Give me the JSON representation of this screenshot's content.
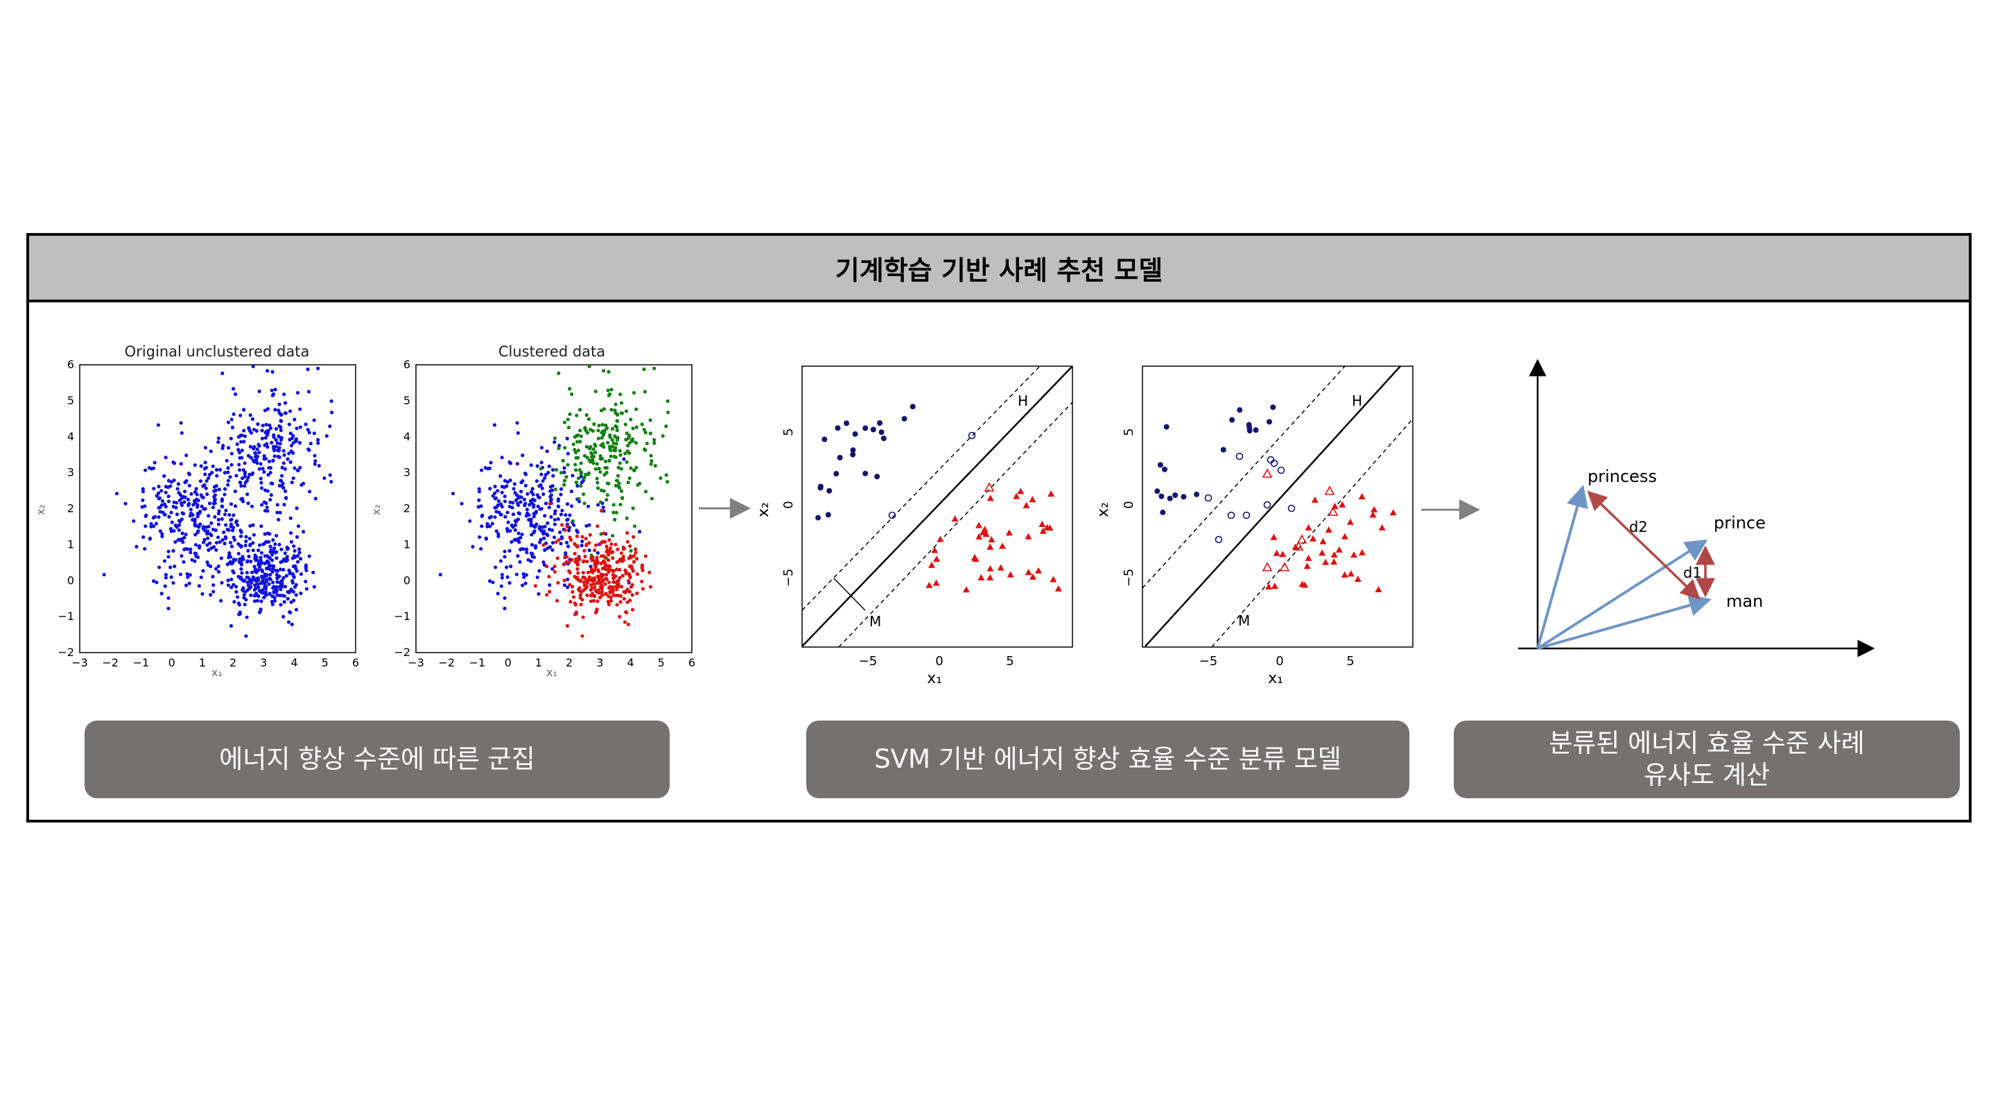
{
  "title": "기계학습 기반 사례 추천 모델",
  "captions": {
    "clustering": "에너지 향상 수준에 따른 군집",
    "svm": "SVM 기반 에너지 향상 효율 수준 분류 모델",
    "similarity_line1": "분류된 에너지 효율 수준 사례",
    "similarity_line2": "유사도 계산"
  },
  "colors": {
    "header_bg": "#bfbfbf",
    "caption_bg": "#767171",
    "blue_points": "#1010e0",
    "green_points": "#108010",
    "red_points": "#e01010",
    "navy_points": "#14146e",
    "vector_blue": "#6e95c4",
    "vector_red": "#b04848"
  },
  "scatter_plots": {
    "original": {
      "title": "Original unclustered data",
      "xlabel": "x₁",
      "ylabel": "x₂",
      "xticks": [
        "−3",
        "−2",
        "−1",
        "0",
        "1",
        "2",
        "3",
        "4",
        "5",
        "6"
      ],
      "yticks": [
        "−2",
        "−1",
        "0",
        "1",
        "2",
        "3",
        "4",
        "5",
        "6"
      ],
      "xlim": [
        -3,
        6
      ],
      "ylim": [
        -2,
        6
      ]
    },
    "clustered": {
      "title": "Clustered data",
      "xlabel": "x₁",
      "ylabel": "x₂",
      "xticks": [
        "−3",
        "−2",
        "−1",
        "0",
        "1",
        "2",
        "3",
        "4",
        "5",
        "6"
      ],
      "yticks": [
        "−2",
        "−1",
        "0",
        "1",
        "2",
        "3",
        "4",
        "5",
        "6"
      ],
      "xlim": [
        -3,
        6
      ],
      "ylim": [
        -2,
        6
      ]
    }
  },
  "clusters": [
    {
      "color": "blue",
      "center": [
        0.8,
        1.7
      ],
      "spread": [
        1.0,
        0.9
      ]
    },
    {
      "color": "green",
      "center": [
        3.2,
        3.6
      ],
      "spread": [
        0.8,
        1.0
      ]
    },
    {
      "color": "red",
      "center": [
        3.0,
        0.2
      ],
      "spread": [
        0.7,
        0.55
      ]
    }
  ],
  "svm_plots": {
    "hard_margin": {
      "xlabel": "x₁",
      "ylabel": "x₂",
      "xticks": [
        "−5",
        "0",
        "5"
      ],
      "yticks": [
        "5",
        "0",
        "−5"
      ],
      "hyperplane_label": "H",
      "margin_label": "M"
    },
    "soft_margin": {
      "xlabel": "x₁",
      "ylabel": "x₂",
      "xticks": [
        "−5",
        "0",
        "5"
      ],
      "yticks": [
        "5",
        "0",
        "−5"
      ],
      "hyperplane_label": "H",
      "margin_label": "M"
    }
  },
  "vector_diagram": {
    "labels": {
      "princess": "princess",
      "prince": "prince",
      "man": "man",
      "d1": "d1",
      "d2": "d2"
    }
  }
}
